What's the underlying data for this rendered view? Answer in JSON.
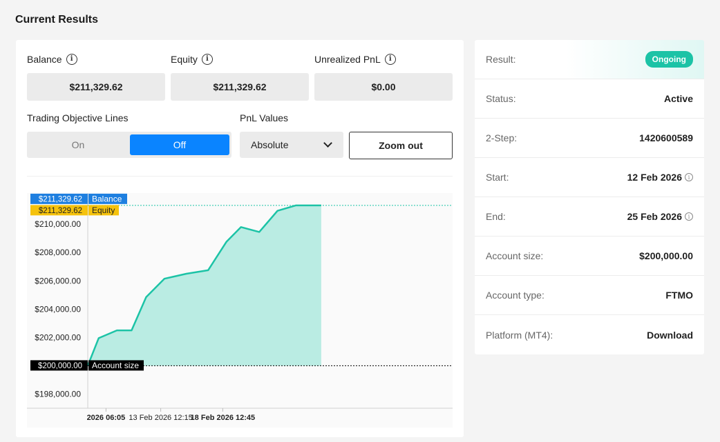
{
  "page": {
    "title": "Current Results"
  },
  "stats": {
    "balance": {
      "label": "Balance",
      "value": "$211,329.62",
      "icon": "info-icon"
    },
    "equity": {
      "label": "Equity",
      "value": "$211,329.62",
      "icon": "info-icon"
    },
    "unrealized": {
      "label": "Unrealized PnL",
      "value": "$0.00",
      "icon": "info-icon"
    }
  },
  "controls": {
    "objective_label": "Trading Objective Lines",
    "toggle_on": "On",
    "toggle_off": "Off",
    "toggle_selected": "Off",
    "pnl_label": "PnL Values",
    "pnl_selected": "Absolute",
    "zoom_label": "Zoom out"
  },
  "chart_data": {
    "type": "area",
    "ylim": [
      197000,
      212200
    ],
    "yticks": [
      198000,
      200000,
      202000,
      204000,
      206000,
      208000,
      210000
    ],
    "ytick_labels": [
      "$198,000.00",
      "$200,000.00",
      "$202,000.00",
      "$204,000.00",
      "$206,000.00",
      "$208,000.00",
      "$210,000.00"
    ],
    "xtick_labels": [
      "2026 06:05",
      "13 Feb 2026 12:15",
      "18 Feb 2026 12:45"
    ],
    "xtick_positions": [
      0.05,
      0.2,
      0.37
    ],
    "x": [
      0,
      0.03,
      0.08,
      0.12,
      0.16,
      0.21,
      0.27,
      0.33,
      0.38,
      0.42,
      0.47,
      0.52,
      0.57,
      0.61,
      0.64
    ],
    "values": [
      200000,
      201950,
      202500,
      202500,
      204850,
      206150,
      206500,
      206750,
      208750,
      209800,
      209450,
      210950,
      211329.62,
      211329.62,
      211329.62
    ],
    "markers": [
      {
        "value_label": "$211,329.62",
        "name": "Balance",
        "value": 211329.62,
        "color": "#1e7fe0"
      },
      {
        "value_label": "$211,329.62",
        "name": "Equity",
        "value": 211329.62,
        "color": "#f5c20c"
      },
      {
        "value_label": "$200,000.00",
        "name": "Account size",
        "value": 200000,
        "color": "#000000"
      }
    ],
    "line_color": "#1cc3a6",
    "fill_color": "#b6ebe1",
    "grid": false
  },
  "details": [
    {
      "label": "Result:",
      "value": "Ongoing",
      "badge": true,
      "info": false
    },
    {
      "label": "Status:",
      "value": "Active",
      "badge": false,
      "info": false
    },
    {
      "label": "2-Step:",
      "value": "1420600589",
      "badge": false,
      "info": false
    },
    {
      "label": "Start:",
      "value": "12 Feb 2026",
      "badge": false,
      "info": true
    },
    {
      "label": "End:",
      "value": "25 Feb 2026",
      "badge": false,
      "info": true
    },
    {
      "label": "Account size:",
      "value": "$200,000.00",
      "badge": false,
      "info": false
    },
    {
      "label": "Account type:",
      "value": "FTMO",
      "badge": false,
      "info": false
    },
    {
      "label": "Platform (MT4):",
      "value": "Download",
      "badge": false,
      "info": false,
      "link": true
    }
  ]
}
